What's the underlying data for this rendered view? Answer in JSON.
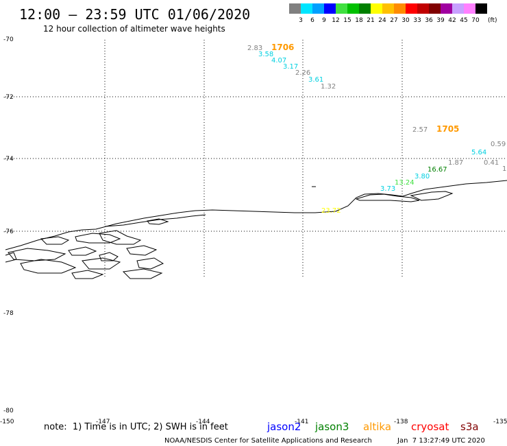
{
  "header": {
    "title": "12:00 – 23:59 UTC 01/06/2020",
    "subtitle": "12 hour collection of altimeter wave heights"
  },
  "colorbar": {
    "unit_label": "(ft)",
    "swatches": [
      {
        "color": "#808080",
        "label": "3"
      },
      {
        "color": "#00e5ff",
        "label": "6"
      },
      {
        "color": "#00a0ff",
        "label": "9"
      },
      {
        "color": "#0000ff",
        "label": "12"
      },
      {
        "color": "#40e040",
        "label": "15"
      },
      {
        "color": "#00c000",
        "label": "18"
      },
      {
        "color": "#008000",
        "label": "21"
      },
      {
        "color": "#ffff00",
        "label": "24"
      },
      {
        "color": "#ffc000",
        "label": "27"
      },
      {
        "color": "#ff8c00",
        "label": "30"
      },
      {
        "color": "#ff0000",
        "label": "33"
      },
      {
        "color": "#c00000",
        "label": "36"
      },
      {
        "color": "#800000",
        "label": "39"
      },
      {
        "color": "#a000a0",
        "label": "42"
      },
      {
        "color": "#c8a0ff",
        "label": "45"
      },
      {
        "color": "#ff80ff",
        "label": "70"
      },
      {
        "color": "#000000",
        "label": ""
      }
    ]
  },
  "map": {
    "lat_labels": [
      "-70",
      "-72",
      "-74",
      "-76",
      "-78",
      "-80"
    ],
    "lon_labels": [
      "-150",
      "-147",
      "-144",
      "-141",
      "-138",
      "-135"
    ]
  },
  "observations": [
    {
      "value": "2.83",
      "color": "#808080"
    },
    {
      "value": "1706",
      "color": "#ff9900"
    },
    {
      "value": "3.58",
      "color": "#00d0e0"
    },
    {
      "value": "4.07",
      "color": "#00d0e0"
    },
    {
      "value": "3.17",
      "color": "#00d0e0"
    },
    {
      "value": "2.26",
      "color": "#808080"
    },
    {
      "value": "3.61",
      "color": "#00d0e0"
    },
    {
      "value": "1.32",
      "color": "#808080"
    },
    {
      "value": "2.57",
      "color": "#808080"
    },
    {
      "value": "1705",
      "color": "#ff9900"
    },
    {
      "value": "0.59",
      "color": "#808080"
    },
    {
      "value": "5.64",
      "color": "#00d0e0"
    },
    {
      "value": "1.87",
      "color": "#808080"
    },
    {
      "value": "0.41",
      "color": "#808080"
    },
    {
      "value": "16.67",
      "color": "#008000"
    },
    {
      "value": "3.80",
      "color": "#00d0e0"
    },
    {
      "value": "13.24",
      "color": "#40e040"
    },
    {
      "value": "3.73",
      "color": "#00d0e0"
    },
    {
      "value": "23.72",
      "color": "#ffff00"
    },
    {
      "value": "1",
      "color": "#808080"
    }
  ],
  "footer": {
    "note": "note:  1) Time is in UTC; 2) SWH is in feet",
    "satellites": [
      {
        "name": "jason2",
        "color": "#0000ff"
      },
      {
        "name": "jason3",
        "color": "#008000"
      },
      {
        "name": "altika",
        "color": "#ff9900"
      },
      {
        "name": "cryosat",
        "color": "#ff0000"
      },
      {
        "name": "s3a",
        "color": "#800000"
      }
    ],
    "credit": "NOAA/NESDIS Center for Satellite Applications and Research",
    "timestamp": "Jan  7 13:27:49 UTC 2020"
  }
}
